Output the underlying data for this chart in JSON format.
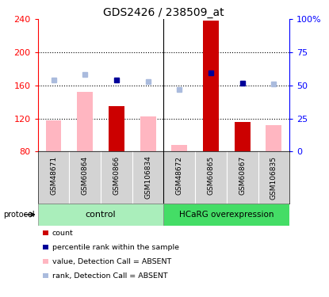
{
  "title": "GDS2426 / 238509_at",
  "samples": [
    "GSM48671",
    "GSM60864",
    "GSM60866",
    "GSM106834",
    "GSM48672",
    "GSM60865",
    "GSM60867",
    "GSM106835"
  ],
  "ylim_left": [
    80,
    240
  ],
  "ylim_right": [
    0,
    100
  ],
  "yticks_left": [
    80,
    120,
    160,
    200,
    240
  ],
  "yticks_right": [
    0,
    25,
    50,
    75,
    100
  ],
  "ytick_labels_right": [
    "0",
    "25",
    "50",
    "75",
    "100%"
  ],
  "red_bars": [
    null,
    null,
    135,
    null,
    null,
    238,
    116,
    null
  ],
  "pink_bars": [
    118,
    152,
    null,
    122,
    88,
    null,
    null,
    112
  ],
  "blue_squares": [
    null,
    null,
    167,
    null,
    null,
    175,
    163,
    null
  ],
  "light_blue_squares": [
    167,
    173,
    null,
    165,
    155,
    null,
    null,
    162
  ],
  "bar_color_red": "#CC0000",
  "bar_color_pink": "#FFB6C1",
  "square_color_blue": "#000099",
  "square_color_light_blue": "#AABBDD",
  "background_gray": "#D3D3D3",
  "background_green_light": "#AAEEBB",
  "background_green_dark": "#44DD66",
  "grid_color": "black",
  "title_fontsize": 10,
  "tick_fontsize": 8,
  "label_fontsize": 8,
  "legend_items": [
    [
      "#CC0000",
      "count"
    ],
    [
      "#000099",
      "percentile rank within the sample"
    ],
    [
      "#FFB6C1",
      "value, Detection Call = ABSENT"
    ],
    [
      "#AABBDD",
      "rank, Detection Call = ABSENT"
    ]
  ]
}
